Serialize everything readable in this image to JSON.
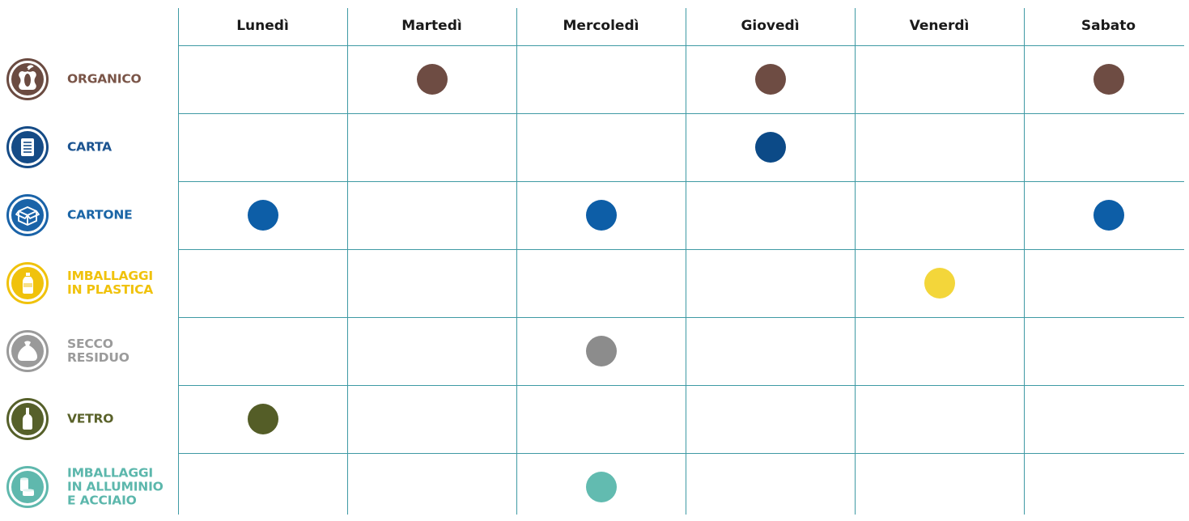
{
  "days": [
    "Lunedì",
    "Martedì",
    "Mercoledì",
    "Giovedì",
    "Venerdì",
    "Sabato"
  ],
  "categories": [
    {
      "label": "ORGANICO",
      "label_color": "#7a5548",
      "icon": "apple-core-icon",
      "icon_color": "#6b4b41",
      "dot_color": "#6e4c43",
      "days": [
        1,
        3,
        5
      ]
    },
    {
      "label": "CARTA",
      "label_color": "#1b5390",
      "icon": "newspaper-icon",
      "icon_color": "#154b86",
      "dot_color": "#0c4a87",
      "days": [
        3
      ]
    },
    {
      "label": "CARTONE",
      "label_color": "#1a65a6",
      "icon": "cardboard-box-icon",
      "icon_color": "#1a63a8",
      "dot_color": "#0d5ea7",
      "days": [
        0,
        2,
        5
      ]
    },
    {
      "label": "IMBALLAGGI\nIN PLASTICA",
      "label_color": "#f0c20c",
      "icon": "plastic-bottle-icon",
      "icon_color": "#f0c20c",
      "dot_color": "#f3d63a",
      "days": [
        4
      ]
    },
    {
      "label": "SECCO\nRESIDUO",
      "label_color": "#9b9b9b",
      "icon": "trash-bag-icon",
      "icon_color": "#9a9a9a",
      "dot_color": "#8c8c8c",
      "days": [
        2
      ]
    },
    {
      "label": "VETRO",
      "label_color": "#5a622a",
      "icon": "glass-bottle-icon",
      "icon_color": "#56602a",
      "dot_color": "#545d27",
      "days": [
        0
      ]
    },
    {
      "label": "IMBALLAGGI\nIN ALLUMINIO\nE ACCIAIO",
      "label_color": "#5cb7ac",
      "icon": "cans-icon",
      "icon_color": "#5fb8ad",
      "dot_color": "#62bbb0",
      "days": [
        2
      ]
    }
  ]
}
